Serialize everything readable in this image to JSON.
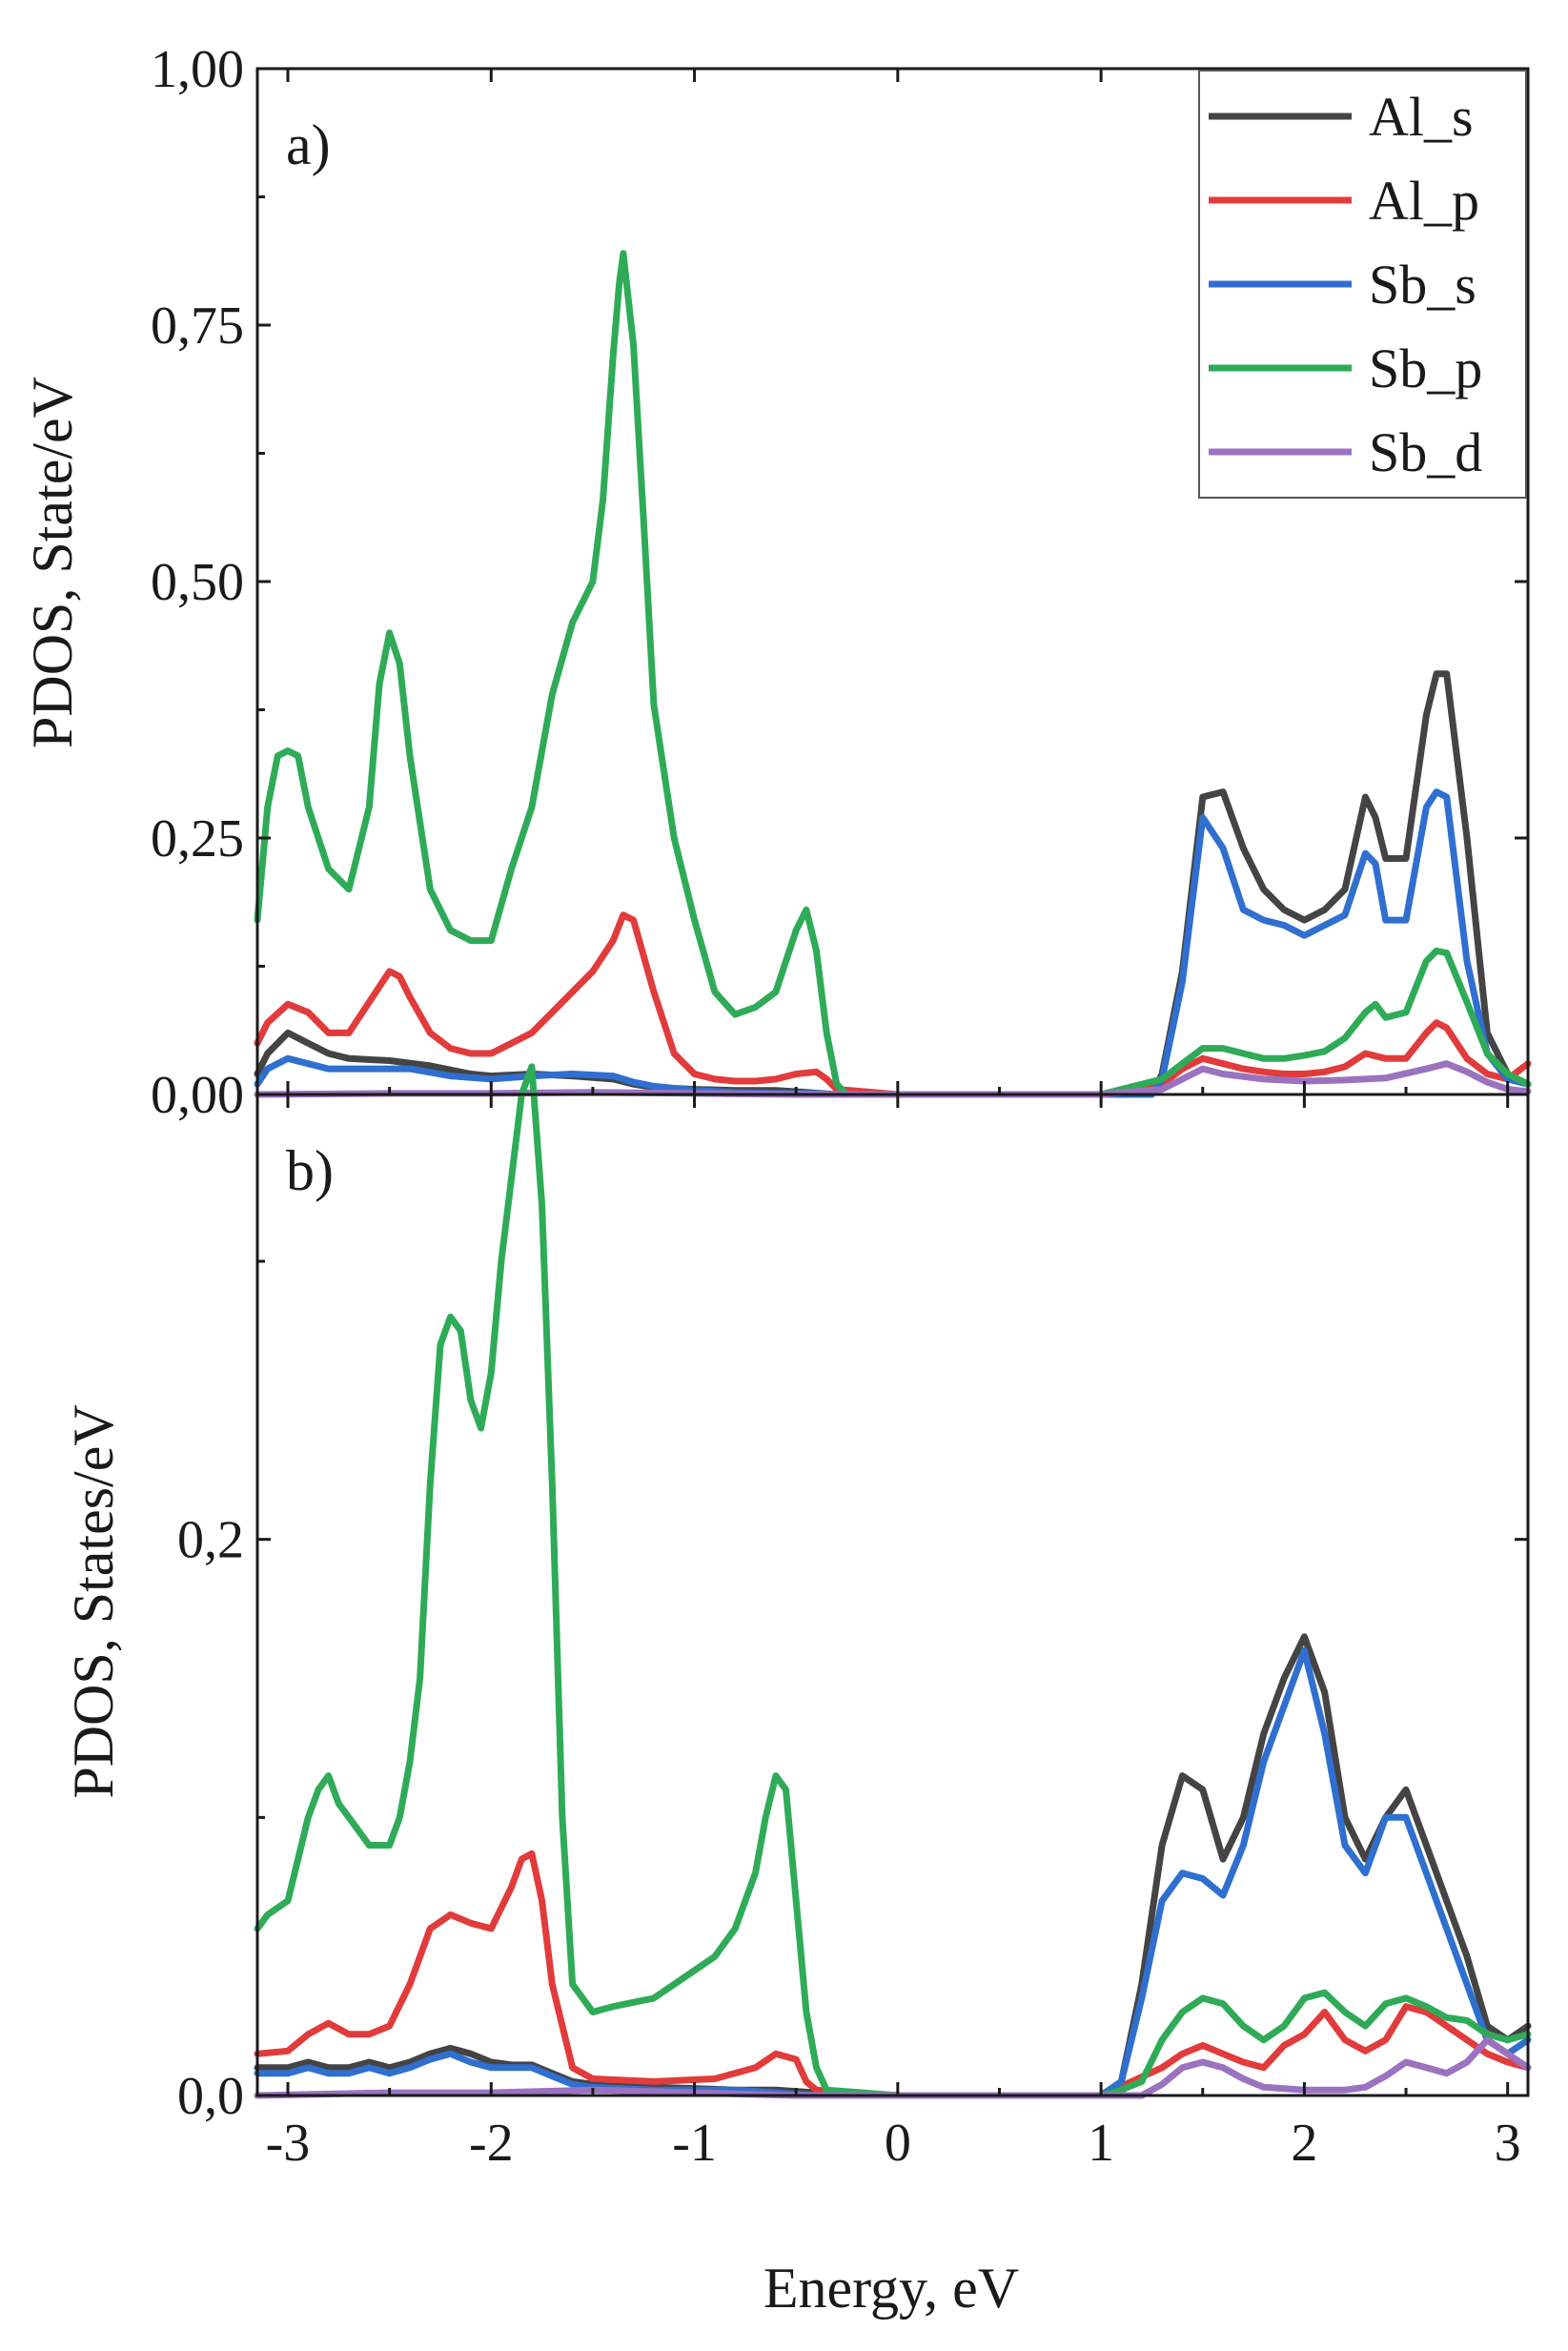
{
  "chart_data": [
    {
      "type": "line",
      "panel_label": "a)",
      "title": "",
      "xlabel": "",
      "ylabel": "PDOS, State/eV",
      "xlim": [
        -3.15,
        3.1
      ],
      "ylim": [
        0,
        1.0
      ],
      "xticks": [
        -3,
        -2,
        -1,
        0,
        1,
        2,
        3
      ],
      "yticks": [
        0,
        0.25,
        0.5,
        0.75,
        1.0
      ],
      "ytick_labels": [
        "0,00",
        "0,25",
        "0,50",
        "0,75",
        "1,00"
      ],
      "legend": {
        "placement": "top-right",
        "entries": [
          "Al_s",
          "Al_p",
          "Sb_s",
          "Sb_p",
          "Sb_d"
        ]
      },
      "series": [
        {
          "name": "Al_s",
          "color": "#444444",
          "x": [
            -3.15,
            -3.1,
            -3.0,
            -2.9,
            -2.8,
            -2.7,
            -2.5,
            -2.3,
            -2.1,
            -2.0,
            -1.8,
            -1.6,
            -1.4,
            -1.3,
            -1.2,
            -1.0,
            -0.8,
            -0.6,
            -0.45,
            -0.3,
            0,
            1.0,
            1.25,
            1.3,
            1.4,
            1.5,
            1.6,
            1.7,
            1.8,
            1.9,
            2.0,
            2.1,
            2.2,
            2.3,
            2.35,
            2.4,
            2.5,
            2.6,
            2.65,
            2.7,
            2.8,
            2.9,
            3.0,
            3.1
          ],
          "values": [
            0.02,
            0.04,
            0.06,
            0.05,
            0.04,
            0.035,
            0.033,
            0.028,
            0.02,
            0.018,
            0.02,
            0.018,
            0.015,
            0.01,
            0.007,
            0.005,
            0.004,
            0.004,
            0.002,
            0,
            0,
            0,
            0,
            0.02,
            0.12,
            0.29,
            0.295,
            0.24,
            0.2,
            0.18,
            0.17,
            0.18,
            0.2,
            0.29,
            0.27,
            0.23,
            0.23,
            0.37,
            0.41,
            0.41,
            0.25,
            0.06,
            0.02,
            0.01
          ]
        },
        {
          "name": "Al_p",
          "color": "#e23b3b",
          "x": [
            -3.15,
            -3.1,
            -3.0,
            -2.9,
            -2.8,
            -2.7,
            -2.6,
            -2.5,
            -2.45,
            -2.4,
            -2.3,
            -2.2,
            -2.1,
            -2.0,
            -1.9,
            -1.8,
            -1.7,
            -1.6,
            -1.5,
            -1.4,
            -1.35,
            -1.3,
            -1.2,
            -1.1,
            -1.0,
            -0.9,
            -0.8,
            -0.7,
            -0.6,
            -0.5,
            -0.4,
            -0.35,
            -0.3,
            0,
            1.0,
            1.3,
            1.4,
            1.5,
            1.6,
            1.7,
            1.8,
            1.9,
            2.0,
            2.1,
            2.2,
            2.3,
            2.4,
            2.5,
            2.6,
            2.65,
            2.7,
            2.8,
            2.9,
            3.0,
            3.1
          ],
          "values": [
            0.05,
            0.07,
            0.088,
            0.08,
            0.06,
            0.06,
            0.09,
            0.12,
            0.115,
            0.095,
            0.06,
            0.045,
            0.04,
            0.04,
            0.05,
            0.06,
            0.08,
            0.1,
            0.12,
            0.15,
            0.175,
            0.17,
            0.1,
            0.04,
            0.02,
            0.015,
            0.013,
            0.013,
            0.015,
            0.02,
            0.022,
            0.015,
            0.005,
            0,
            0,
            0.01,
            0.025,
            0.035,
            0.03,
            0.025,
            0.022,
            0.02,
            0.02,
            0.022,
            0.027,
            0.04,
            0.035,
            0.035,
            0.06,
            0.07,
            0.065,
            0.035,
            0.02,
            0.015,
            0.03
          ]
        },
        {
          "name": "Sb_s",
          "color": "#2f6fd0",
          "x": [
            -3.15,
            -3.1,
            -3.0,
            -2.9,
            -2.8,
            -2.6,
            -2.4,
            -2.2,
            -2.0,
            -1.8,
            -1.6,
            -1.4,
            -1.3,
            -1.2,
            -1.0,
            -0.8,
            -0.6,
            -0.4,
            -0.3,
            0,
            1.0,
            1.25,
            1.3,
            1.4,
            1.5,
            1.6,
            1.7,
            1.8,
            1.9,
            2.0,
            2.1,
            2.2,
            2.3,
            2.35,
            2.4,
            2.5,
            2.6,
            2.65,
            2.7,
            2.8,
            2.9,
            3.0,
            3.1
          ],
          "values": [
            0.01,
            0.025,
            0.035,
            0.03,
            0.025,
            0.025,
            0.025,
            0.018,
            0.015,
            0.018,
            0.02,
            0.018,
            0.012,
            0.008,
            0.004,
            0.002,
            0.001,
            0.001,
            0,
            0,
            0,
            0,
            0.015,
            0.11,
            0.27,
            0.24,
            0.18,
            0.17,
            0.165,
            0.155,
            0.165,
            0.175,
            0.235,
            0.225,
            0.17,
            0.17,
            0.28,
            0.295,
            0.29,
            0.13,
            0.04,
            0.015,
            0.01
          ]
        },
        {
          "name": "Sb_p",
          "color": "#2fab58",
          "x": [
            -3.15,
            -3.1,
            -3.05,
            -3.0,
            -2.95,
            -2.9,
            -2.8,
            -2.7,
            -2.6,
            -2.55,
            -2.5,
            -2.45,
            -2.4,
            -2.3,
            -2.2,
            -2.1,
            -2.0,
            -1.9,
            -1.8,
            -1.7,
            -1.6,
            -1.5,
            -1.45,
            -1.4,
            -1.37,
            -1.35,
            -1.3,
            -1.25,
            -1.2,
            -1.1,
            -1.0,
            -0.9,
            -0.8,
            -0.7,
            -0.6,
            -0.55,
            -0.5,
            -0.45,
            -0.4,
            -0.35,
            -0.3,
            -0.25,
            0,
            1.0,
            1.3,
            1.4,
            1.5,
            1.6,
            1.7,
            1.8,
            1.9,
            2.0,
            2.1,
            2.2,
            2.3,
            2.35,
            2.4,
            2.5,
            2.6,
            2.65,
            2.7,
            2.8,
            2.9,
            3.0,
            3.1
          ],
          "values": [
            0.17,
            0.28,
            0.33,
            0.335,
            0.33,
            0.28,
            0.22,
            0.2,
            0.28,
            0.4,
            0.45,
            0.42,
            0.33,
            0.2,
            0.16,
            0.15,
            0.15,
            0.22,
            0.28,
            0.39,
            0.46,
            0.5,
            0.58,
            0.72,
            0.79,
            0.82,
            0.73,
            0.56,
            0.38,
            0.25,
            0.17,
            0.1,
            0.078,
            0.085,
            0.1,
            0.13,
            0.16,
            0.18,
            0.14,
            0.06,
            0.01,
            0,
            0,
            0,
            0.015,
            0.03,
            0.045,
            0.045,
            0.04,
            0.035,
            0.035,
            0.038,
            0.042,
            0.055,
            0.08,
            0.088,
            0.075,
            0.08,
            0.13,
            0.14,
            0.138,
            0.09,
            0.04,
            0.02,
            0.01
          ]
        },
        {
          "name": "Sb_d",
          "color": "#9b72c0",
          "x": [
            -3.15,
            -2.5,
            -2.0,
            -1.5,
            -1.0,
            -0.5,
            0,
            1.0,
            1.3,
            1.4,
            1.5,
            1.6,
            1.8,
            2.0,
            2.2,
            2.4,
            2.6,
            2.7,
            2.8,
            2.9,
            3.0,
            3.1
          ],
          "values": [
            0.0,
            0.001,
            0.001,
            0.002,
            0.001,
            0.0,
            0,
            0,
            0.005,
            0.015,
            0.025,
            0.02,
            0.015,
            0.013,
            0.014,
            0.016,
            0.025,
            0.03,
            0.022,
            0.012,
            0.005,
            0.003
          ]
        }
      ]
    },
    {
      "type": "line",
      "panel_label": "b)",
      "title": "",
      "xlabel": "Energy, eV",
      "ylabel": "PDOS, States/eV",
      "xlim": [
        -3.15,
        3.1
      ],
      "ylim": [
        0,
        0.36
      ],
      "xticks": [
        -3,
        -2,
        -1,
        0,
        1,
        2,
        3
      ],
      "xtick_labels": [
        "-3",
        "-2",
        "-1",
        "0",
        "1",
        "2",
        "3"
      ],
      "yticks": [
        0,
        0.2
      ],
      "ytick_labels": [
        "0,0",
        "0,2"
      ],
      "series": [
        {
          "name": "Al_s",
          "color": "#444444",
          "x": [
            -3.15,
            -3.0,
            -2.9,
            -2.8,
            -2.7,
            -2.6,
            -2.5,
            -2.4,
            -2.3,
            -2.2,
            -2.1,
            -2.0,
            -1.9,
            -1.8,
            -1.7,
            -1.6,
            -1.5,
            -1.2,
            -0.8,
            -0.6,
            -0.4,
            0,
            1.0,
            1.1,
            1.2,
            1.3,
            1.4,
            1.5,
            1.6,
            1.7,
            1.8,
            1.9,
            2.0,
            2.1,
            2.2,
            2.3,
            2.4,
            2.5,
            2.6,
            2.7,
            2.8,
            2.9,
            3.0,
            3.1
          ],
          "values": [
            0.01,
            0.01,
            0.012,
            0.01,
            0.01,
            0.012,
            0.01,
            0.012,
            0.015,
            0.017,
            0.015,
            0.012,
            0.011,
            0.011,
            0.008,
            0.005,
            0.004,
            0.003,
            0.002,
            0.002,
            0.001,
            0,
            0,
            0.005,
            0.04,
            0.09,
            0.115,
            0.11,
            0.085,
            0.1,
            0.13,
            0.15,
            0.165,
            0.145,
            0.1,
            0.085,
            0.1,
            0.11,
            0.09,
            0.07,
            0.05,
            0.025,
            0.02,
            0.025
          ]
        },
        {
          "name": "Al_p",
          "color": "#e23b3b",
          "x": [
            -3.15,
            -3.0,
            -2.9,
            -2.8,
            -2.7,
            -2.6,
            -2.5,
            -2.4,
            -2.3,
            -2.2,
            -2.1,
            -2.0,
            -1.9,
            -1.85,
            -1.8,
            -1.75,
            -1.7,
            -1.6,
            -1.5,
            -1.2,
            -0.9,
            -0.7,
            -0.6,
            -0.5,
            -0.45,
            -0.4,
            0,
            1.0,
            1.3,
            1.4,
            1.5,
            1.6,
            1.7,
            1.8,
            1.9,
            2.0,
            2.1,
            2.2,
            2.3,
            2.4,
            2.5,
            2.6,
            2.7,
            2.8,
            2.9,
            3.0,
            3.1
          ],
          "values": [
            0.015,
            0.016,
            0.022,
            0.026,
            0.022,
            0.022,
            0.025,
            0.04,
            0.06,
            0.065,
            0.062,
            0.06,
            0.075,
            0.085,
            0.087,
            0.07,
            0.04,
            0.01,
            0.006,
            0.005,
            0.006,
            0.01,
            0.015,
            0.013,
            0.005,
            0.002,
            0,
            0,
            0.01,
            0.015,
            0.018,
            0.015,
            0.012,
            0.01,
            0.018,
            0.022,
            0.03,
            0.02,
            0.016,
            0.02,
            0.032,
            0.03,
            0.025,
            0.02,
            0.015,
            0.012,
            0.01
          ]
        },
        {
          "name": "Sb_s",
          "color": "#2f6fd0",
          "x": [
            -3.15,
            -3.0,
            -2.9,
            -2.8,
            -2.7,
            -2.6,
            -2.5,
            -2.4,
            -2.3,
            -2.2,
            -2.1,
            -2.0,
            -1.9,
            -1.8,
            -1.7,
            -1.6,
            -1.5,
            -1.2,
            -0.8,
            -0.6,
            -0.4,
            0,
            1.0,
            1.1,
            1.2,
            1.3,
            1.4,
            1.5,
            1.6,
            1.7,
            1.8,
            1.9,
            2.0,
            2.1,
            2.2,
            2.3,
            2.4,
            2.5,
            2.6,
            2.7,
            2.8,
            2.9,
            3.0,
            3.1
          ],
          "values": [
            0.008,
            0.008,
            0.01,
            0.008,
            0.008,
            0.01,
            0.008,
            0.01,
            0.013,
            0.015,
            0.012,
            0.01,
            0.01,
            0.01,
            0.007,
            0.004,
            0.003,
            0.002,
            0.002,
            0.001,
            0.0,
            0,
            0,
            0.005,
            0.035,
            0.07,
            0.08,
            0.078,
            0.072,
            0.09,
            0.12,
            0.14,
            0.16,
            0.13,
            0.09,
            0.08,
            0.1,
            0.1,
            0.08,
            0.06,
            0.04,
            0.02,
            0.015,
            0.02
          ]
        },
        {
          "name": "Sb_p",
          "color": "#2fab58",
          "x": [
            -3.15,
            -3.1,
            -3.0,
            -2.9,
            -2.85,
            -2.8,
            -2.75,
            -2.7,
            -2.6,
            -2.5,
            -2.45,
            -2.4,
            -2.35,
            -2.3,
            -2.25,
            -2.2,
            -2.15,
            -2.1,
            -2.05,
            -2.0,
            -1.95,
            -1.9,
            -1.85,
            -1.8,
            -1.75,
            -1.7,
            -1.65,
            -1.6,
            -1.5,
            -1.4,
            -1.2,
            -1.0,
            -0.9,
            -0.8,
            -0.7,
            -0.65,
            -0.6,
            -0.55,
            -0.5,
            -0.45,
            -0.4,
            -0.35,
            0,
            1.0,
            1.1,
            1.2,
            1.3,
            1.4,
            1.5,
            1.6,
            1.7,
            1.8,
            1.9,
            2.0,
            2.1,
            2.2,
            2.3,
            2.4,
            2.5,
            2.6,
            2.7,
            2.8,
            2.9,
            3.0,
            3.1
          ],
          "values": [
            0.06,
            0.065,
            0.07,
            0.1,
            0.11,
            0.115,
            0.105,
            0.1,
            0.09,
            0.09,
            0.1,
            0.12,
            0.15,
            0.22,
            0.27,
            0.28,
            0.275,
            0.25,
            0.24,
            0.26,
            0.3,
            0.33,
            0.36,
            0.37,
            0.32,
            0.22,
            0.1,
            0.04,
            0.03,
            0.032,
            0.035,
            0.045,
            0.05,
            0.06,
            0.08,
            0.1,
            0.115,
            0.11,
            0.07,
            0.03,
            0.01,
            0.002,
            0,
            0,
            0.002,
            0.005,
            0.02,
            0.03,
            0.035,
            0.033,
            0.025,
            0.02,
            0.025,
            0.035,
            0.037,
            0.03,
            0.025,
            0.033,
            0.035,
            0.032,
            0.028,
            0.027,
            0.022,
            0.02,
            0.022
          ]
        },
        {
          "name": "Sb_d",
          "color": "#9b72c0",
          "x": [
            -3.15,
            -2.5,
            -2.0,
            -1.5,
            -1.0,
            -0.5,
            0,
            1.0,
            1.2,
            1.3,
            1.4,
            1.5,
            1.6,
            1.7,
            1.8,
            2.0,
            2.2,
            2.3,
            2.4,
            2.5,
            2.6,
            2.7,
            2.8,
            2.9,
            3.0,
            3.1
          ],
          "values": [
            0.0,
            0.001,
            0.001,
            0.002,
            0.001,
            0.0,
            0,
            0,
            0.0,
            0.004,
            0.01,
            0.012,
            0.01,
            0.006,
            0.003,
            0.002,
            0.002,
            0.003,
            0.007,
            0.012,
            0.01,
            0.008,
            0.012,
            0.02,
            0.015,
            0.01
          ]
        }
      ]
    }
  ]
}
